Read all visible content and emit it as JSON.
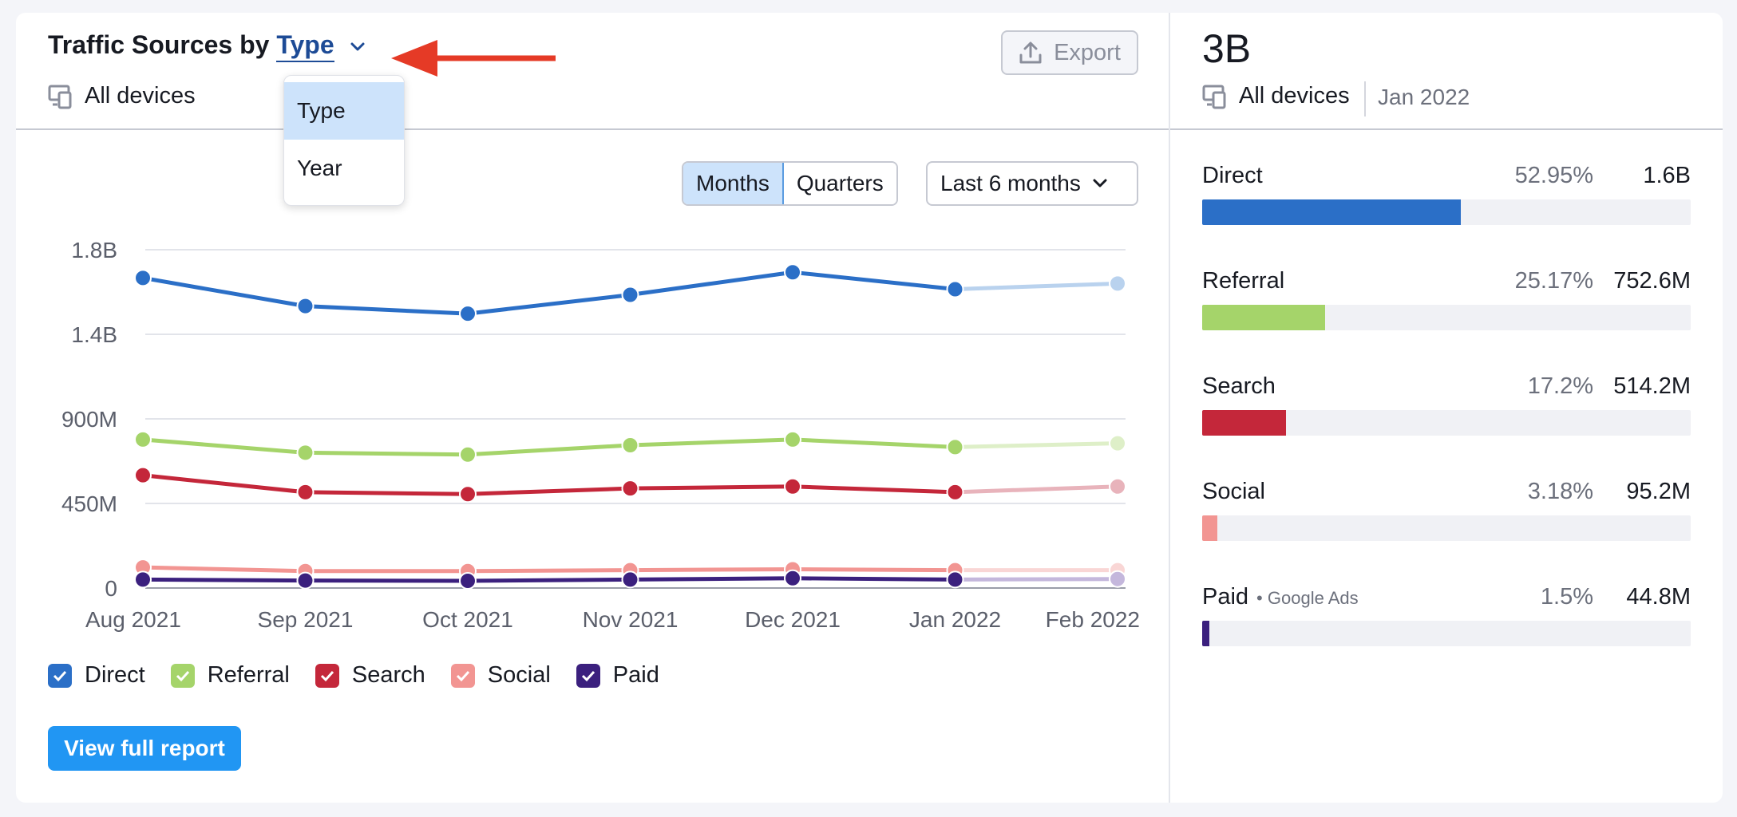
{
  "header": {
    "title_prefix": "Traffic Sources by",
    "title_selected": "Type",
    "devices_label": "All devices",
    "export_label": "Export"
  },
  "dropdown": {
    "options": [
      {
        "label": "Type",
        "selected": true
      },
      {
        "label": "Year",
        "selected": false
      }
    ]
  },
  "controls": {
    "granularity": [
      {
        "label": "Months",
        "active": true
      },
      {
        "label": "Quarters",
        "active": false
      }
    ],
    "range_label": "Last 6 months"
  },
  "chart_data": {
    "type": "line",
    "x": [
      "Aug 2021",
      "Sep 2021",
      "Oct 2021",
      "Nov 2021",
      "Dec 2021",
      "Jan 2022",
      "Feb 2022"
    ],
    "yticks": [
      "1.8B",
      "1.4B",
      "900M",
      "450M",
      "0"
    ],
    "ylim": [
      0,
      1800000000
    ],
    "grid": true,
    "last_point_faded": true,
    "series": [
      {
        "name": "Direct",
        "color": "#2b6fc7",
        "faded_color": "#b9d2ee",
        "values": [
          1650000000,
          1500000000,
          1460000000,
          1560000000,
          1680000000,
          1590000000,
          1620000000
        ]
      },
      {
        "name": "Referral",
        "color": "#a5d46a",
        "faded_color": "#deefc8",
        "values": [
          790000000,
          720000000,
          710000000,
          760000000,
          790000000,
          750000000,
          770000000
        ]
      },
      {
        "name": "Search",
        "color": "#c4273a",
        "faded_color": "#e8b3bb",
        "values": [
          600000000,
          510000000,
          500000000,
          530000000,
          540000000,
          510000000,
          540000000
        ]
      },
      {
        "name": "Social",
        "color": "#f29592",
        "faded_color": "#f9d6d5",
        "values": [
          110000000,
          90000000,
          90000000,
          95000000,
          100000000,
          95000000,
          95000000
        ]
      },
      {
        "name": "Paid",
        "color": "#3b207e",
        "faded_color": "#c4b7dc",
        "values": [
          45000000,
          40000000,
          38000000,
          45000000,
          52000000,
          45000000,
          48000000
        ]
      }
    ]
  },
  "legend": [
    {
      "label": "Direct",
      "color": "#2b6fc7"
    },
    {
      "label": "Referral",
      "color": "#a5d46a"
    },
    {
      "label": "Search",
      "color": "#c4273a"
    },
    {
      "label": "Social",
      "color": "#f29592"
    },
    {
      "label": "Paid",
      "color": "#3b207e"
    }
  ],
  "report_button": "View full report",
  "summary": {
    "total": "3B",
    "devices_label": "All devices",
    "month": "Jan 2022",
    "sources": [
      {
        "name": "Direct",
        "note": "",
        "pct": "52.95%",
        "value": "1.6B",
        "share": 0.5295,
        "color": "#2b6fc7"
      },
      {
        "name": "Referral",
        "note": "",
        "pct": "25.17%",
        "value": "752.6M",
        "share": 0.2517,
        "color": "#a5d46a"
      },
      {
        "name": "Search",
        "note": "",
        "pct": "17.2%",
        "value": "514.2M",
        "share": 0.172,
        "color": "#c4273a"
      },
      {
        "name": "Social",
        "note": "",
        "pct": "3.18%",
        "value": "95.2M",
        "share": 0.0318,
        "color": "#f29592"
      },
      {
        "name": "Paid",
        "note": "Google Ads",
        "pct": "1.5%",
        "value": "44.8M",
        "share": 0.015,
        "color": "#3b207e"
      }
    ]
  }
}
